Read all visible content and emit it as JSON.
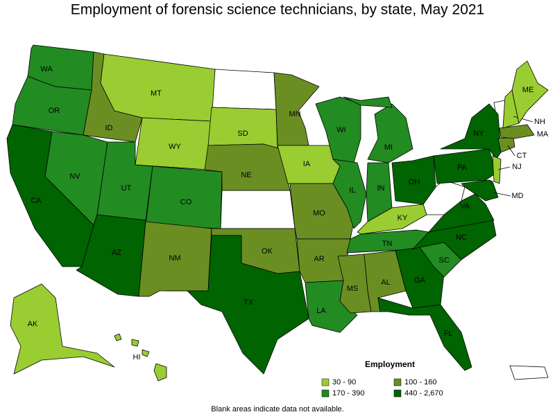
{
  "title": "Employment of forensic science technicians, by state, May 2021",
  "legend": {
    "title": "Employment",
    "items": [
      {
        "label": "30 - 90",
        "color": "#9acd32"
      },
      {
        "label": "100 - 160",
        "color": "#6b8e23"
      },
      {
        "label": "170 - 390",
        "color": "#228b22"
      },
      {
        "label": "440 - 2,670",
        "color": "#006400"
      }
    ]
  },
  "footnote": "Blank areas indicate data not available.",
  "states": [
    {
      "label": "WA",
      "category": "170 - 390"
    },
    {
      "label": "OR",
      "category": "170 - 390"
    },
    {
      "label": "CA",
      "category": "440 - 2,670"
    },
    {
      "label": "ID",
      "category": "100 - 160"
    },
    {
      "label": "NV",
      "category": "170 - 390"
    },
    {
      "label": "MT",
      "category": "30 - 90"
    },
    {
      "label": "WY",
      "category": "30 - 90"
    },
    {
      "label": "UT",
      "category": "170 - 390"
    },
    {
      "label": "AZ",
      "category": "440 - 2,670"
    },
    {
      "label": "CO",
      "category": "170 - 390"
    },
    {
      "label": "NM",
      "category": "100 - 160"
    },
    {
      "label": "SD",
      "category": "30 - 90"
    },
    {
      "label": "NE",
      "category": "100 - 160"
    },
    {
      "label": "OK",
      "category": "100 - 160"
    },
    {
      "label": "TX",
      "category": "440 - 2,670"
    },
    {
      "label": "MN",
      "category": "100 - 160"
    },
    {
      "label": "IA",
      "category": "30 - 90"
    },
    {
      "label": "MO",
      "category": "100 - 160"
    },
    {
      "label": "AR",
      "category": "100 - 160"
    },
    {
      "label": "LA",
      "category": "170 - 390"
    },
    {
      "label": "WI",
      "category": "170 - 390"
    },
    {
      "label": "IL",
      "category": "170 - 390"
    },
    {
      "label": "MI",
      "category": "170 - 390"
    },
    {
      "label": "IN",
      "category": "170 - 390"
    },
    {
      "label": "OH",
      "category": "440 - 2,670"
    },
    {
      "label": "KY",
      "category": "30 - 90"
    },
    {
      "label": "TN",
      "category": "170 - 390"
    },
    {
      "label": "MS",
      "category": "100 - 160"
    },
    {
      "label": "AL",
      "category": "100 - 160"
    },
    {
      "label": "GA",
      "category": "440 - 2,670"
    },
    {
      "label": "FL",
      "category": "440 - 2,670"
    },
    {
      "label": "SC",
      "category": "170 - 390"
    },
    {
      "label": "NC",
      "category": "440 - 2,670"
    },
    {
      "label": "VA",
      "category": "440 - 2,670"
    },
    {
      "label": "PA",
      "category": "440 - 2,670"
    },
    {
      "label": "NY",
      "category": "440 - 2,670"
    },
    {
      "label": "MD",
      "category": "440 - 2,670"
    },
    {
      "label": "NJ",
      "category": "30 - 90"
    },
    {
      "label": "CT",
      "category": "100 - 160"
    },
    {
      "label": "MA",
      "category": "100 - 160"
    },
    {
      "label": "NH",
      "category": "30 - 90"
    },
    {
      "label": "ME",
      "category": "30 - 90"
    },
    {
      "label": "AK",
      "category": "30 - 90"
    },
    {
      "label": "HI",
      "category": "30 - 90"
    }
  ]
}
